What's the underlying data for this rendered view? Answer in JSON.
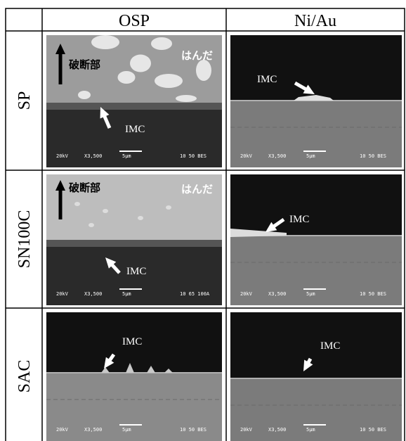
{
  "header": {
    "columns": [
      "OSP",
      "Ni/Au"
    ]
  },
  "rows": [
    {
      "label": "SP",
      "cells": [
        {
          "texts": [
            "破断部",
            "はんだ",
            "IMC"
          ],
          "footer": [
            "20kV",
            "X3,500",
            "5μm",
            "10 50 BES"
          ]
        },
        {
          "texts": [
            "IMC"
          ],
          "footer": [
            "20kV",
            "X3,500",
            "5μm",
            "10 50 BES"
          ]
        }
      ]
    },
    {
      "label": "SN100C",
      "cells": [
        {
          "texts": [
            "破断部",
            "はんだ",
            "IMC"
          ],
          "footer": [
            "20kV",
            "X3,500",
            "5μm",
            "10 65 100A"
          ]
        },
        {
          "texts": [
            "IMC"
          ],
          "footer": [
            "20kV",
            "X3,500",
            "5μm",
            "10 50 BES"
          ]
        }
      ]
    },
    {
      "label": "SAC",
      "cells": [
        {
          "texts": [
            "IMC"
          ],
          "footer": [
            "20kV",
            "X3,500",
            "5μm",
            "10 50 BES"
          ]
        },
        {
          "texts": [
            "IMC"
          ],
          "footer": [
            "20kV",
            "X3,500",
            "5μm",
            "10 50 BES"
          ]
        }
      ]
    }
  ]
}
